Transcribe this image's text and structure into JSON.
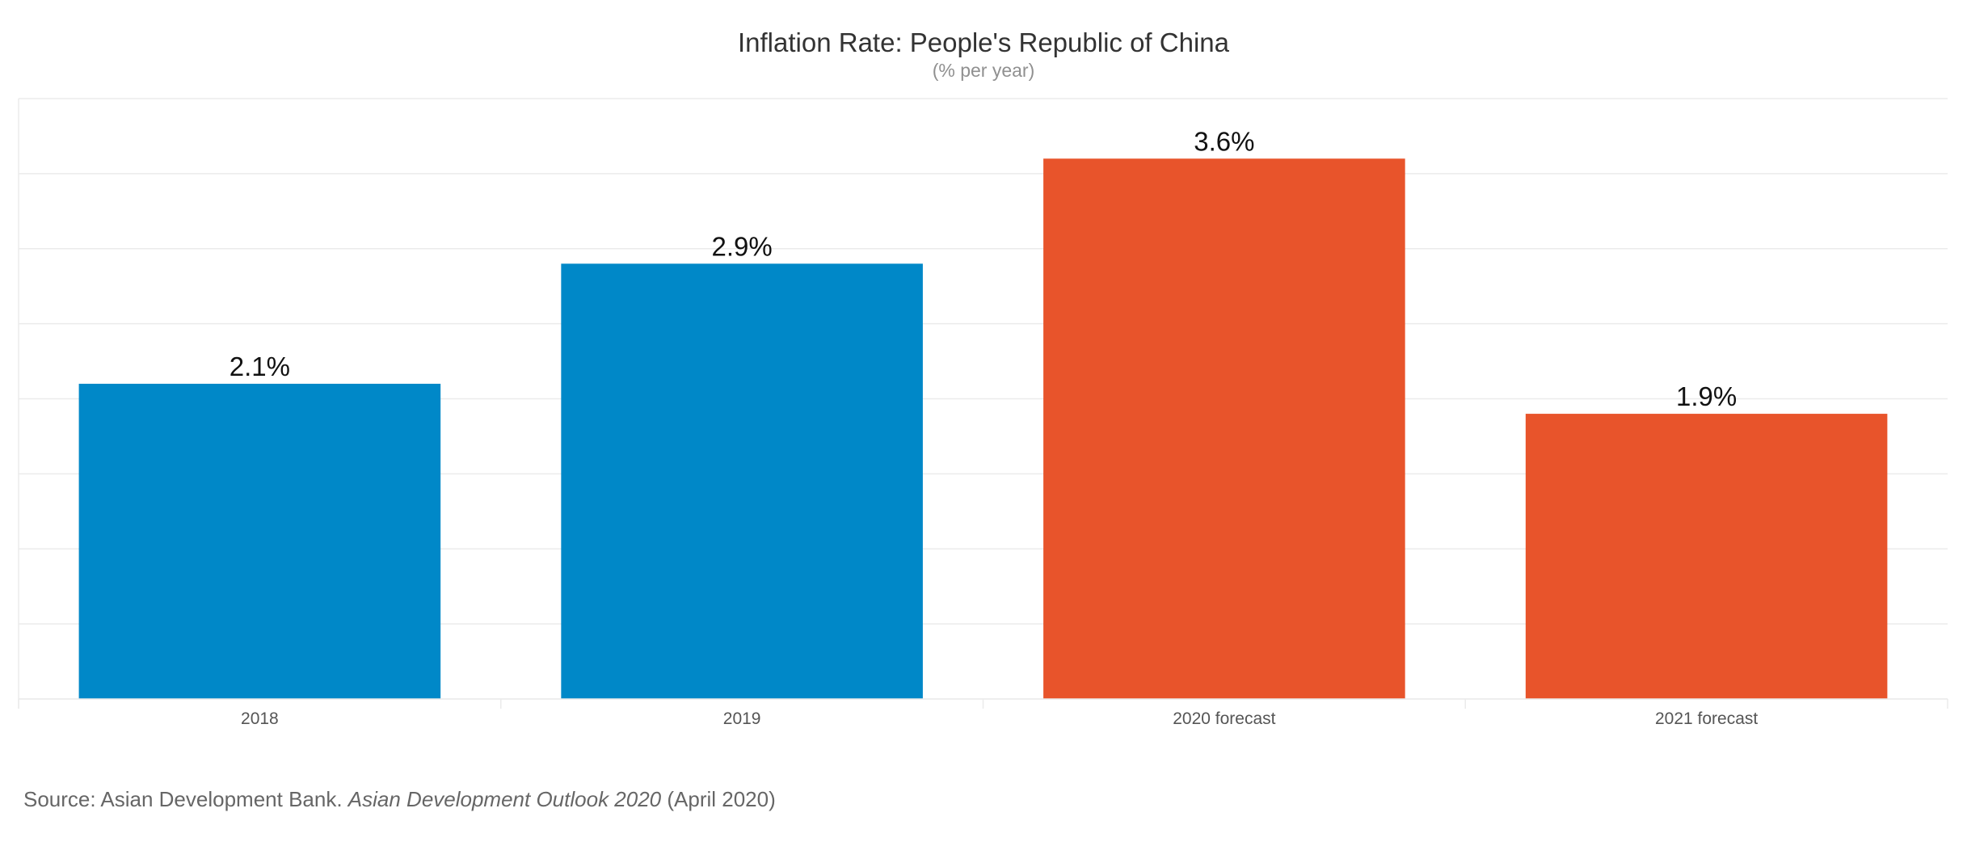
{
  "chart_data": {
    "type": "bar",
    "title": "Inflation Rate: People's Republic of China",
    "subtitle": "(% per year)",
    "xlabel": "",
    "ylabel": "",
    "categories": [
      "2018",
      "2019",
      "2020 forecast",
      "2021 forecast"
    ],
    "values": [
      2.1,
      2.9,
      3.6,
      1.9
    ],
    "data_labels": [
      "2.1%",
      "2.9%",
      "3.6%",
      "1.9%"
    ],
    "bar_colors": [
      "#0088c8",
      "#0088c8",
      "#e8542b",
      "#e8542b"
    ],
    "ylim": [
      0,
      4.0
    ],
    "grid": true,
    "grid_step": 0.5,
    "legend": "none"
  },
  "source": {
    "prefix": "Source: Asian Development Bank. ",
    "publication": "Asian Development Outlook 2020",
    "suffix": " (April 2020)"
  },
  "colors": {
    "actual": "#0088c8",
    "forecast": "#e8542b",
    "gridline": "#ebebeb",
    "title": "#333333",
    "subtitle": "#909090",
    "tick_label": "#555555"
  }
}
